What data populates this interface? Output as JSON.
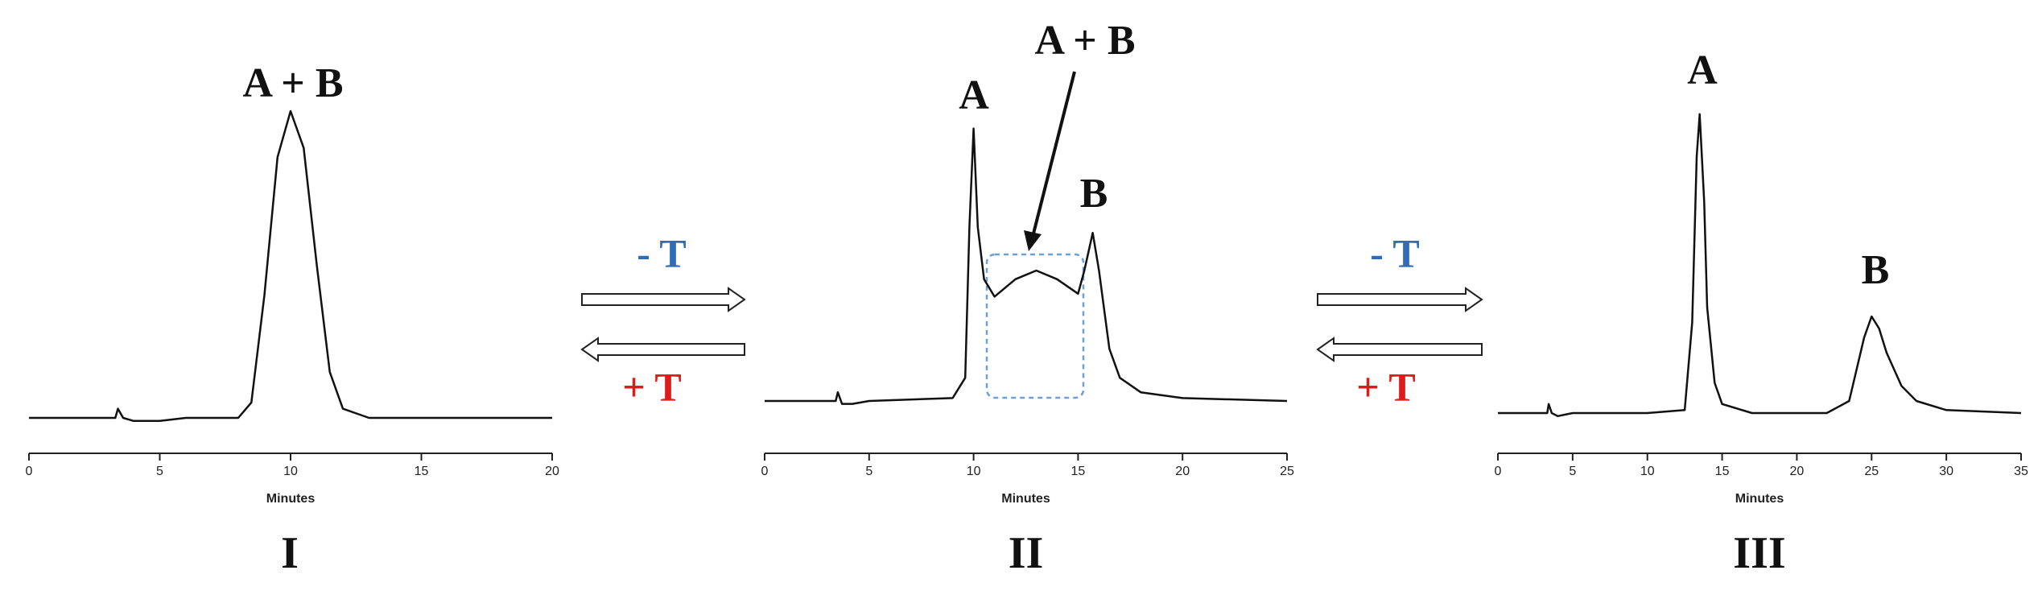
{
  "chart_data": [
    {
      "type": "line",
      "xlabel": "Minutes",
      "panel_label": "I",
      "annotations": [
        "A + B"
      ],
      "x": [
        0,
        3.3,
        3.4,
        3.6,
        4,
        5,
        6,
        7,
        8,
        8.5,
        9,
        9.5,
        10,
        10.5,
        11,
        11.5,
        12,
        13,
        15,
        20
      ],
      "values": [
        0,
        0,
        3,
        0,
        -1,
        -1,
        0,
        0,
        0,
        5,
        40,
        85,
        100,
        88,
        50,
        15,
        3,
        0,
        0,
        0
      ],
      "color": "#111111",
      "xlim": [
        0,
        20
      ],
      "xticks": [
        0,
        5,
        10,
        15,
        20
      ],
      "ylim": [
        0,
        100
      ]
    },
    {
      "type": "line",
      "xlabel": "Minutes",
      "panel_label": "II",
      "annotations": [
        "A + B",
        "A",
        "B"
      ],
      "x": [
        0,
        3.4,
        3.5,
        3.7,
        4.2,
        5,
        9,
        9.6,
        9.8,
        10,
        10.2,
        10.5,
        11,
        12,
        13,
        14,
        15,
        15.3,
        15.7,
        16,
        16.5,
        17,
        18,
        20,
        25
      ],
      "values": [
        0,
        0,
        3,
        -1,
        -1,
        0,
        1,
        8,
        60,
        94,
        60,
        42,
        36,
        42,
        45,
        42,
        37,
        45,
        58,
        45,
        18,
        8,
        3,
        1,
        0
      ],
      "color": "#111111",
      "xlim": [
        0,
        25
      ],
      "xticks": [
        0,
        5,
        10,
        15,
        20,
        25
      ],
      "ylim": [
        0,
        100
      ]
    },
    {
      "type": "line",
      "xlabel": "Minutes",
      "panel_label": "III",
      "annotations": [
        "A",
        "B"
      ],
      "x": [
        0,
        3.3,
        3.4,
        3.6,
        4,
        5,
        10,
        12.5,
        13,
        13.3,
        13.5,
        13.8,
        14,
        14.5,
        15,
        17,
        22,
        23.5,
        24.5,
        25,
        25.5,
        26,
        27,
        28,
        30,
        35
      ],
      "values": [
        0,
        0,
        3,
        0,
        -1,
        0,
        0,
        1,
        30,
        85,
        99,
        70,
        35,
        10,
        3,
        0,
        0,
        4,
        25,
        32,
        28,
        20,
        9,
        4,
        1,
        0
      ],
      "color": "#111111",
      "xlim": [
        0,
        35
      ],
      "xticks": [
        0,
        5,
        10,
        15,
        20,
        25,
        30,
        35
      ],
      "ylim": [
        0,
        100
      ]
    }
  ],
  "transitions": [
    {
      "forward": "- T",
      "backward": "+ T"
    },
    {
      "forward": "- T",
      "backward": "+ T"
    }
  ]
}
